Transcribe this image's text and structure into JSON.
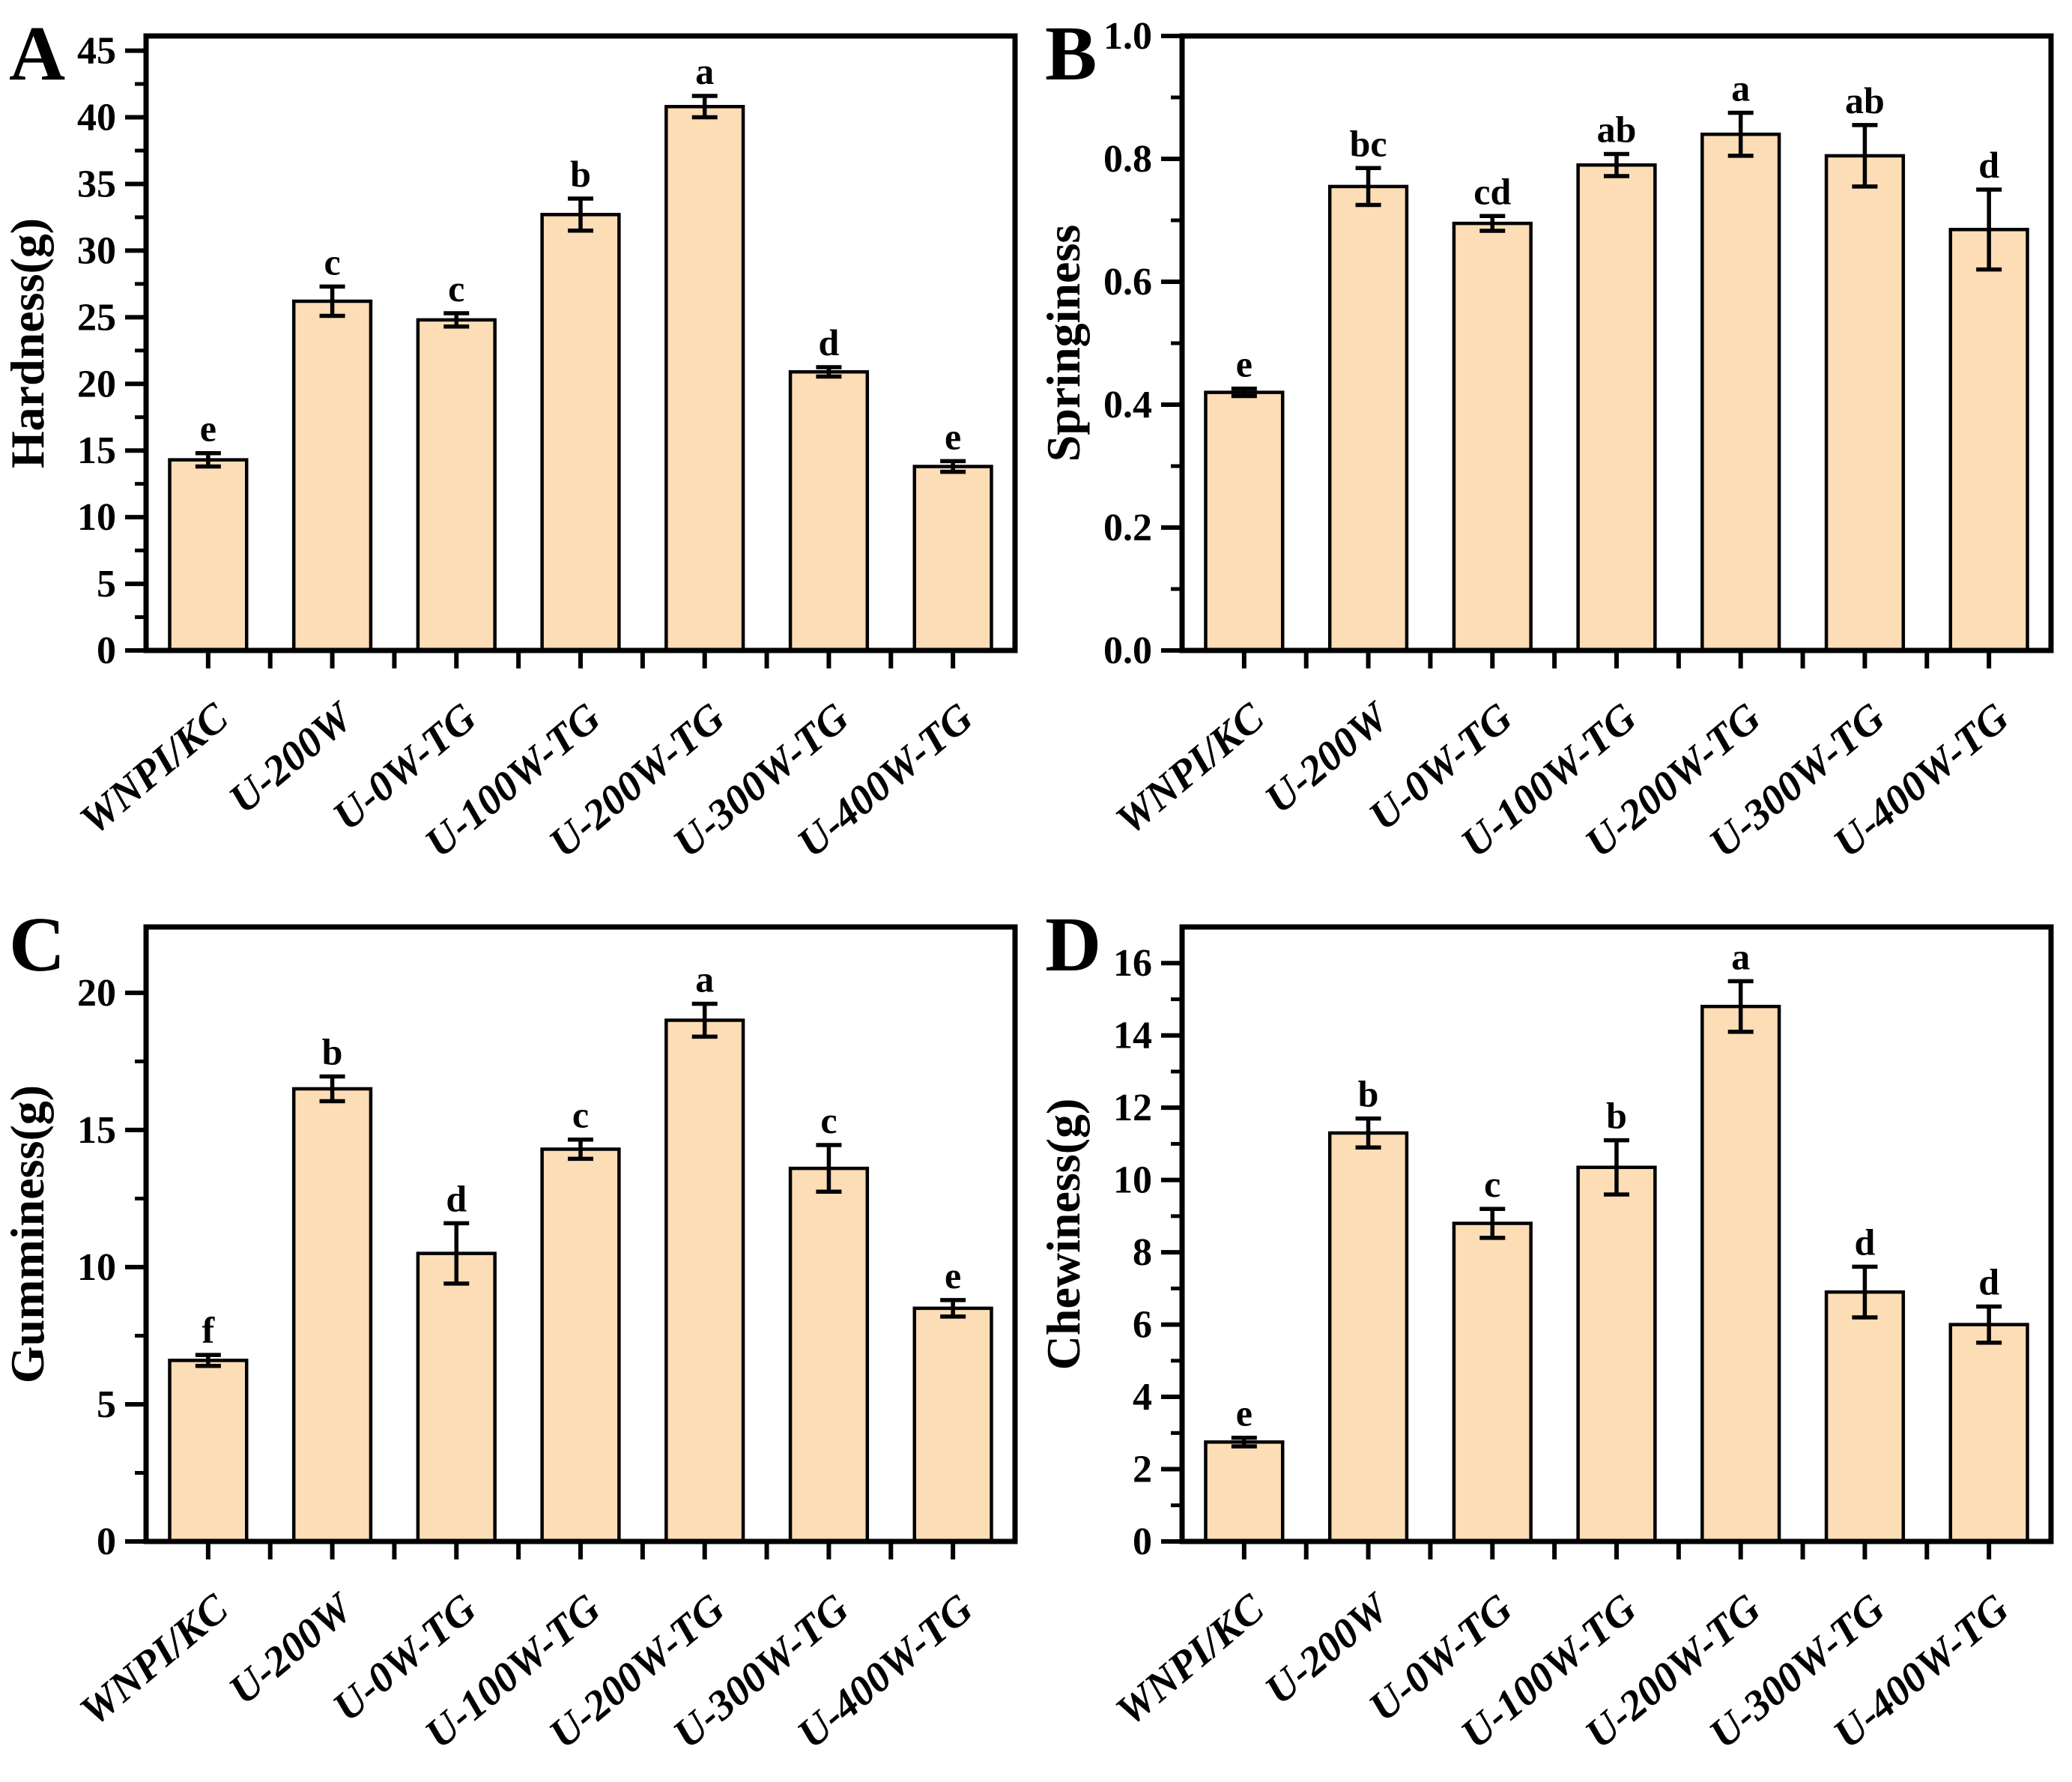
{
  "figure": {
    "panel_letters": [
      "A",
      "B",
      "C",
      "D"
    ],
    "layout": "2x2 grid of bar charts with error bars and significance letters"
  },
  "categories": [
    "WNPI/KC",
    "U-200W",
    "U-0W-TG",
    "U-100W-TG",
    "U-200W-TG",
    "U-300W-TG",
    "U-400W-TG"
  ],
  "colors": {
    "bar_fill": "#fcddb5",
    "bar_stroke": "#000000",
    "axis": "#000000",
    "text": "#000000",
    "background": "#ffffff"
  },
  "chart_data": [
    {
      "type": "bar",
      "panel": "A",
      "ylabel": "Hardness(g)",
      "values": [
        14.3,
        26.2,
        24.8,
        32.7,
        40.8,
        20.9,
        13.8
      ],
      "errors": [
        0.5,
        1.1,
        0.5,
        1.2,
        0.8,
        0.35,
        0.4
      ],
      "sig_letters": [
        "e",
        "c",
        "c",
        "b",
        "a",
        "d",
        "e"
      ],
      "ylim": [
        0,
        46.1
      ],
      "ytick_step": 5,
      "tick_decimals": 0,
      "yticks": [
        "0",
        "5",
        "10",
        "15",
        "20",
        "25",
        "30",
        "35",
        "40",
        "45"
      ],
      "grid": false,
      "legend": "none"
    },
    {
      "type": "bar",
      "panel": "B",
      "ylabel": "Springiness",
      "values": [
        0.42,
        0.755,
        0.695,
        0.79,
        0.84,
        0.805,
        0.685
      ],
      "errors": [
        0.006,
        0.03,
        0.012,
        0.018,
        0.035,
        0.05,
        0.065
      ],
      "sig_letters": [
        "e",
        "bc",
        "cd",
        "ab",
        "a",
        "ab",
        "d"
      ],
      "ylim": [
        0,
        1.0
      ],
      "ytick_step": 0.2,
      "tick_decimals": 1,
      "yticks": [
        "0.0",
        "0.2",
        "0.4",
        "0.6",
        "0.8",
        "1.0"
      ],
      "grid": false,
      "legend": "none"
    },
    {
      "type": "bar",
      "panel": "C",
      "ylabel": "Gumminess(g)",
      "values": [
        6.6,
        16.5,
        10.5,
        14.3,
        19.0,
        13.6,
        8.5
      ],
      "errors": [
        0.2,
        0.45,
        1.1,
        0.35,
        0.6,
        0.85,
        0.3
      ],
      "sig_letters": [
        "f",
        "b",
        "d",
        "c",
        "a",
        "c",
        "e"
      ],
      "ylim": [
        0,
        22.4
      ],
      "ytick_step": 5,
      "tick_decimals": 0,
      "yticks": [
        "0",
        "5",
        "10",
        "15",
        "20"
      ],
      "grid": false,
      "legend": "none"
    },
    {
      "type": "bar",
      "panel": "D",
      "ylabel": "Chewiness(g)",
      "values": [
        2.75,
        11.3,
        8.8,
        10.35,
        14.8,
        6.9,
        6.0
      ],
      "errors": [
        0.12,
        0.4,
        0.4,
        0.75,
        0.7,
        0.7,
        0.5
      ],
      "sig_letters": [
        "e",
        "b",
        "c",
        "b",
        "a",
        "d",
        "d"
      ],
      "ylim": [
        0,
        17.0
      ],
      "ytick_step": 2,
      "tick_decimals": 0,
      "yticks": [
        "0",
        "2",
        "4",
        "6",
        "8",
        "10",
        "12",
        "14",
        "16"
      ],
      "grid": false,
      "legend": "none"
    }
  ]
}
